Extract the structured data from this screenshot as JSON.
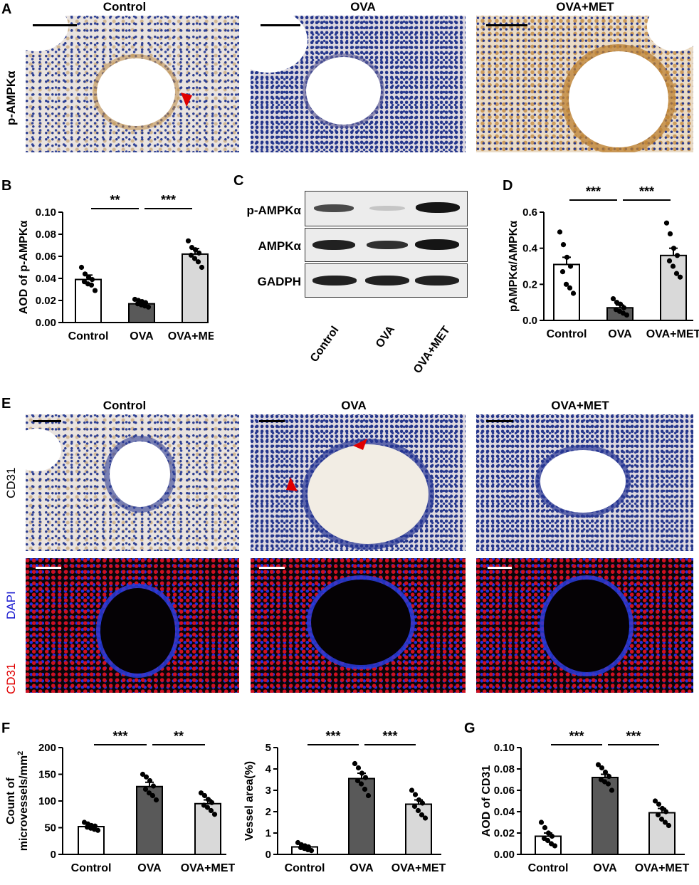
{
  "panels": {
    "A": {
      "letter": "A",
      "row_label": "p-AMPKα",
      "columns": [
        "Control",
        "OVA",
        "OVA+MET"
      ]
    },
    "C": {
      "letter": "C",
      "proteins": [
        "p-AMPKα",
        "AMPKα",
        "GADPH"
      ],
      "lanes": [
        "Control",
        "OVA",
        "OVA+MET"
      ]
    },
    "E": {
      "letter": "E",
      "columns": [
        "Control",
        "OVA",
        "OVA+MET"
      ],
      "row1_label": "CD31",
      "row2_label_dapi": "DAPI",
      "row2_label_cd31": "CD31"
    },
    "F": {
      "letter": "F"
    }
  },
  "colors": {
    "control_bar": "#ffffff",
    "ova_bar": "#595959",
    "ovamet_bar": "#d9d9d9",
    "arrowhead": "#e00000",
    "dapi_label": "#1a1ad0",
    "cd31_label": "#e00000"
  },
  "chart_data": [
    {
      "id": "B",
      "letter": "B",
      "type": "bar",
      "categories": [
        "Control",
        "OVA",
        "OVA+MET"
      ],
      "values": [
        0.039,
        0.017,
        0.062
      ],
      "sem": [
        0.004,
        0.002,
        0.005
      ],
      "points": [
        [
          0.05,
          0.044,
          0.041,
          0.039,
          0.037,
          0.035,
          0.034,
          0.029
        ],
        [
          0.021,
          0.02,
          0.019,
          0.018,
          0.017,
          0.016,
          0.015,
          0.014
        ],
        [
          0.074,
          0.068,
          0.066,
          0.063,
          0.061,
          0.058,
          0.055,
          0.05
        ]
      ],
      "ylabel": "AOD of p-AMPKα",
      "ylim": [
        0,
        0.1
      ],
      "yticks": [
        "0.00",
        "0.02",
        "0.04",
        "0.06",
        "0.08",
        "0.10"
      ],
      "significance": [
        {
          "from": 0,
          "to": 1,
          "label": "**"
        },
        {
          "from": 1,
          "to": 2,
          "label": "***"
        }
      ]
    },
    {
      "id": "D",
      "letter": "D",
      "type": "bar",
      "categories": [
        "Control",
        "OVA",
        "OVA+MET"
      ],
      "values": [
        0.31,
        0.07,
        0.36
      ],
      "sem": [
        0.04,
        0.015,
        0.04
      ],
      "points": [
        [
          0.49,
          0.42,
          0.35,
          0.3,
          0.27,
          0.2,
          0.18,
          0.15
        ],
        [
          0.12,
          0.1,
          0.09,
          0.07,
          0.06,
          0.05,
          0.04,
          0.03
        ],
        [
          0.54,
          0.48,
          0.4,
          0.36,
          0.33,
          0.3,
          0.26,
          0.24
        ]
      ],
      "ylabel": "pAMPKα/AMPKα",
      "ylim": [
        0,
        0.6
      ],
      "yticks": [
        "0.0",
        "0.2",
        "0.4",
        "0.6"
      ],
      "significance": [
        {
          "from": 0,
          "to": 1,
          "label": "***"
        },
        {
          "from": 1,
          "to": 2,
          "label": "***"
        }
      ]
    },
    {
      "id": "F1",
      "type": "bar",
      "categories": [
        "Control",
        "OVA",
        "OVA+MET"
      ],
      "values": [
        52,
        127,
        95
      ],
      "sem": [
        3,
        8,
        7
      ],
      "points": [
        [
          60,
          57,
          54,
          53,
          51,
          49,
          47,
          45
        ],
        [
          150,
          145,
          138,
          128,
          122,
          115,
          110,
          102
        ],
        [
          115,
          110,
          103,
          97,
          92,
          88,
          82,
          75
        ]
      ],
      "ylabel_line1": "Count of",
      "ylabel_line2": "microvessels/mm",
      "ylabel_sup": "2",
      "ylim": [
        0,
        200
      ],
      "yticks": [
        "0",
        "50",
        "100",
        "150",
        "200"
      ],
      "significance": [
        {
          "from": 0,
          "to": 1,
          "label": "***"
        },
        {
          "from": 1,
          "to": 2,
          "label": "**"
        }
      ]
    },
    {
      "id": "F2",
      "type": "bar",
      "categories": [
        "Control",
        "OVA",
        "OVA+MET"
      ],
      "values": [
        0.35,
        3.55,
        2.35
      ],
      "sem": [
        0.05,
        0.25,
        0.2
      ],
      "points": [
        [
          0.55,
          0.45,
          0.4,
          0.35,
          0.32,
          0.28,
          0.22,
          0.18
        ],
        [
          4.25,
          4.05,
          3.8,
          3.6,
          3.45,
          3.3,
          3.05,
          2.75
        ],
        [
          3.0,
          2.8,
          2.55,
          2.4,
          2.25,
          2.05,
          1.85,
          1.7
        ]
      ],
      "ylabel": "Vessel area(%)",
      "ylim": [
        0,
        5
      ],
      "yticks": [
        "0",
        "1",
        "2",
        "3",
        "4",
        "5"
      ],
      "significance": [
        {
          "from": 0,
          "to": 1,
          "label": "***"
        },
        {
          "from": 1,
          "to": 2,
          "label": "***"
        }
      ]
    },
    {
      "id": "G",
      "letter": "G",
      "type": "bar",
      "categories": [
        "Control",
        "OVA",
        "OVA+MET"
      ],
      "values": [
        0.017,
        0.072,
        0.039
      ],
      "sem": [
        0.003,
        0.003,
        0.004
      ],
      "points": [
        [
          0.03,
          0.025,
          0.02,
          0.017,
          0.015,
          0.013,
          0.01,
          0.008
        ],
        [
          0.084,
          0.081,
          0.077,
          0.073,
          0.07,
          0.068,
          0.066,
          0.06
        ],
        [
          0.05,
          0.047,
          0.043,
          0.04,
          0.037,
          0.033,
          0.03,
          0.027
        ]
      ],
      "ylabel": "AOD of CD31",
      "ylim": [
        0,
        0.1
      ],
      "yticks": [
        "0.00",
        "0.02",
        "0.04",
        "0.06",
        "0.08",
        "0.10"
      ],
      "significance": [
        {
          "from": 0,
          "to": 1,
          "label": "***"
        },
        {
          "from": 1,
          "to": 2,
          "label": "***"
        }
      ]
    }
  ]
}
